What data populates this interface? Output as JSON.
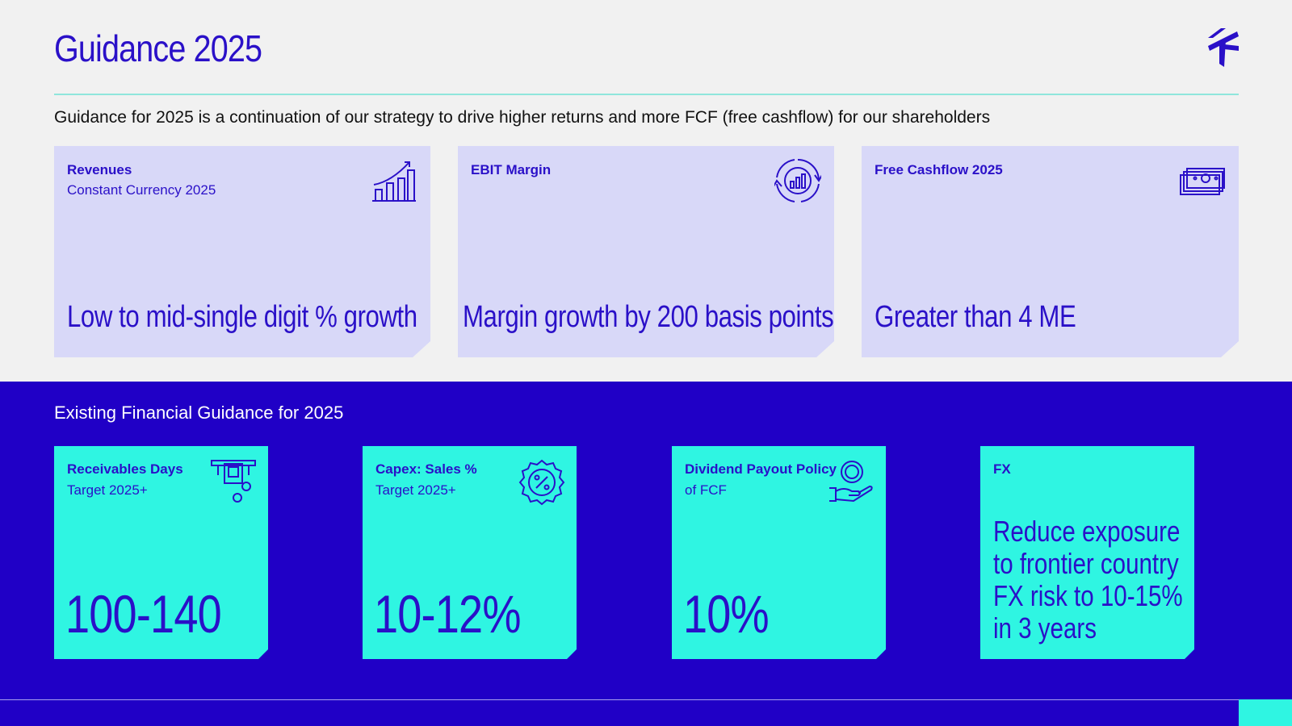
{
  "header": {
    "title": "Guidance 2025",
    "logo_icon": "brand-logo-icon",
    "subtitle": "Guidance for 2025 is a continuation of our strategy to drive higher returns and more FCF (free cashflow) for our shareholders"
  },
  "guidance_cards": [
    {
      "label": "Revenues",
      "sublabel": "Constant Currency 2025",
      "value": "Low to mid-single digit % growth",
      "icon": "growth-chart-icon"
    },
    {
      "label": "EBIT Margin",
      "sublabel": "",
      "value": "Margin growth by 200 basis points (2%)",
      "icon": "cycle-chart-icon"
    },
    {
      "label": "Free Cashflow 2025",
      "sublabel": "",
      "value": "Greater than 4 ME",
      "icon": "banknotes-icon"
    }
  ],
  "existing": {
    "title": "Existing Financial Guidance for 2025",
    "tiles": [
      {
        "label": "Receivables Days",
        "sublabel": "Target 2025+",
        "value": "100-140",
        "icon": "atm-cash-icon"
      },
      {
        "label": "Capex: Sales %",
        "sublabel": "Target 2025+",
        "value": "10-12%",
        "icon": "percent-badge-icon"
      },
      {
        "label": "Dividend Payout Policy",
        "sublabel": "of FCF",
        "value": "10%",
        "icon": "hand-coin-icon"
      },
      {
        "label": "FX",
        "sublabel": "",
        "value": "Reduce exposure to frontier country FX risk to 10-15% in 3 years",
        "icon": ""
      }
    ]
  },
  "colors": {
    "brand_blue": "#2a10c8",
    "band_blue": "#2000c6",
    "card_lavender": "#d8d8f8",
    "tile_aqua": "#2ff5e2",
    "rule_teal": "#8fe6dc"
  }
}
